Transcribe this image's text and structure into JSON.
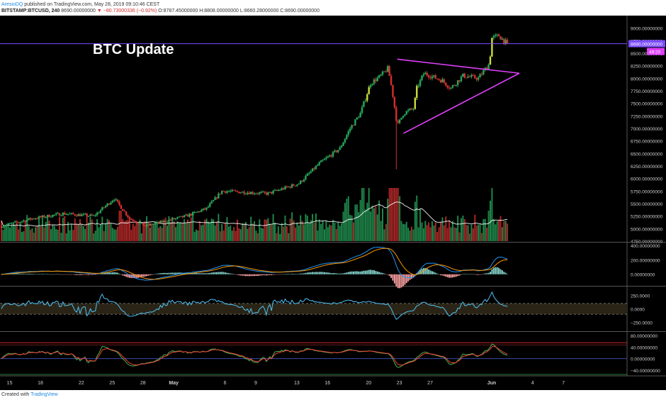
{
  "header": {
    "author": "AresioDQ",
    "published_text": "published on TradingView.com, May 28, 2019 09:10:46 CEST",
    "symbol": "BITSTAMP:BTCUSD, 240",
    "last": "8690.00000000",
    "change": "▼ −80.73000336 (−0.92%)",
    "ohlc": "O:8787.45000000 H:8808.00000000 L:8660.28000000 C:8690.00000000"
  },
  "footer": {
    "created_with": "Created with",
    "brand": "TradingView"
  },
  "colors": {
    "background": "#000000",
    "up": "#26a65b",
    "down": "#d32f2f",
    "wedge": "#e040fb",
    "price_line": "#7c4dff",
    "macd_line": "#2196f3",
    "signal_line": "#ff9800",
    "cci_line": "#4fc3f7",
    "stoch_k": "#4caf50",
    "stoch_d": "#f44336"
  },
  "chart_data": [
    {
      "type": "candlestick",
      "title": "BTC Update",
      "x_ticks": [
        "15",
        "18",
        "22",
        "25",
        "28",
        "May",
        "6",
        "9",
        "13",
        "16",
        "20",
        "23",
        "27",
        "Jun",
        "4",
        "7"
      ],
      "y_ticks": [
        "9000.00000000",
        "8750.00000000",
        "8500.00000000",
        "8250.00000000",
        "8000.00000000",
        "7750.00000000",
        "7500.00000000",
        "7250.00000000",
        "7000.00000000",
        "6750.00000000",
        "6500.00000000",
        "6250.00000000",
        "6000.00000000",
        "5750.00000000",
        "5500.00000000",
        "5250.00000000",
        "5000.00000000",
        "4750.00000000"
      ],
      "ylim": [
        4750,
        9250
      ],
      "last_price_label": "8690.00000000",
      "countdown_label": "49:20",
      "last_price": 8690,
      "anchors": [
        {
          "day": 0,
          "price": 5050
        },
        {
          "day": 3,
          "price": 5200
        },
        {
          "day": 6,
          "price": 5300
        },
        {
          "day": 9,
          "price": 5250
        },
        {
          "day": 11,
          "price": 5600
        },
        {
          "day": 12.5,
          "price": 5200
        },
        {
          "day": 14,
          "price": 5050
        },
        {
          "day": 18,
          "price": 5250
        },
        {
          "day": 20,
          "price": 5400
        },
        {
          "day": 21.5,
          "price": 5750
        },
        {
          "day": 26,
          "price": 5700
        },
        {
          "day": 29,
          "price": 5900
        },
        {
          "day": 31,
          "price": 6300
        },
        {
          "day": 33,
          "price": 6600
        },
        {
          "day": 34,
          "price": 7000
        },
        {
          "day": 35,
          "price": 7300
        },
        {
          "day": 36,
          "price": 7900
        },
        {
          "day": 37,
          "price": 8050
        },
        {
          "day": 37.7,
          "price": 8200
        },
        {
          "day": 38.1,
          "price": 7750
        },
        {
          "day": 38.6,
          "price": 7050
        },
        {
          "day": 39.2,
          "price": 7300
        },
        {
          "day": 40.2,
          "price": 7400
        },
        {
          "day": 40.5,
          "price": 7800
        },
        {
          "day": 41.2,
          "price": 8100
        },
        {
          "day": 43,
          "price": 7950
        },
        {
          "day": 43.8,
          "price": 7800
        },
        {
          "day": 45,
          "price": 8050
        },
        {
          "day": 46.5,
          "price": 8000
        },
        {
          "day": 47.6,
          "price": 8300
        },
        {
          "day": 47.8,
          "price": 8800
        },
        {
          "day": 48.5,
          "price": 8850
        },
        {
          "day": 49.3,
          "price": 8690
        }
      ],
      "triangle": {
        "upper": [
          {
            "day": 38.6,
            "price": 8380
          },
          {
            "day": 50.5,
            "price": 8100
          }
        ],
        "lower": [
          {
            "day": 39.2,
            "price": 6900
          },
          {
            "day": 50.5,
            "price": 8100
          }
        ]
      },
      "volume": {
        "overlay": "moving average"
      }
    },
    {
      "type": "line",
      "title": "",
      "series": [
        {
          "name": ""
        },
        {
          "name": ""
        }
      ],
      "histogram": true,
      "y_ticks": [
        "400.00000000",
        "200.00000000",
        "0.00000000"
      ],
      "ylim": [
        -150,
        430
      ]
    },
    {
      "type": "line",
      "title": "",
      "y_ticks": [
        "250.0000",
        "0.0000",
        "−250.0000"
      ],
      "ylim": [
        -400,
        400
      ],
      "bands": [
        100,
        -100
      ]
    },
    {
      "type": "line",
      "title": "",
      "series": [
        {
          "name": ""
        },
        {
          "name": ""
        }
      ],
      "y_ticks": [
        "80.00000000",
        "40.00000000",
        "0.00000000",
        "−40.00000000"
      ],
      "ylim": [
        -60,
        90
      ],
      "bands": [
        55,
        -55
      ]
    }
  ]
}
